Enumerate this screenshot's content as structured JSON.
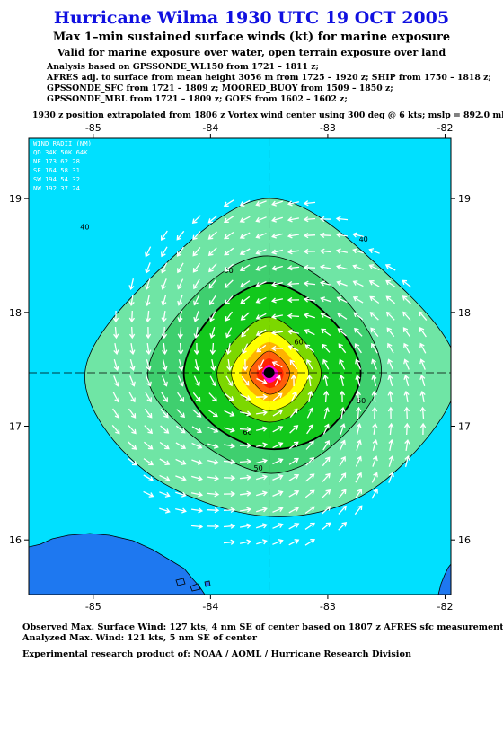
{
  "title": "Hurricane Wilma 1930 UTC 19 OCT 2005",
  "subtitle": "Max 1–min sustained surface winds (kt) for marine exposure",
  "subtitle2": "Valid for marine exposure over water, open terrain exposure over land",
  "analysis_lines": [
    "Analysis based on  GPSSONDE_WL150 from 1721 – 1811 z;",
    "AFRES adj. to surface from mean height 3056 m from 1725 – 1920 z;  SHIP from 1750 – 1818 z;",
    "GPSSONDE_SFC from 1721 – 1809 z;  MOORED_BUOY from 1509 – 1850 z;",
    "GPSSONDE_MBL from 1721 – 1809 z;  GOES from 1602 – 1602 z;"
  ],
  "position_line": "1930 z position extrapolated from 1806 z Vortex wind center using 300 deg @ 6 kts; mslp = 892.0 mb",
  "map": {
    "lon_ticks": [
      "-85",
      "-84",
      "-83",
      "-82"
    ],
    "lat_ticks": [
      "19",
      "18",
      "17",
      "16"
    ],
    "center": {
      "lon": -83.5,
      "lat": 17.47
    },
    "lon_range": [
      -85.55,
      -81.95
    ],
    "lat_range": [
      15.52,
      19.53
    ],
    "contour_labels": [
      "40",
      "40",
      "40",
      "40",
      "50",
      "50",
      "50",
      "60",
      "60"
    ],
    "legend": {
      "title": "WIND RADII (NM)",
      "header": "QD  34K  50K  64K",
      "rows": [
        "NE  173   62   28",
        "SE  164   58   31",
        "SW  194   54   32",
        "NW  192   37   24"
      ]
    },
    "colors": {
      "ocean": "#00e0ff",
      "land": "#1e78f0",
      "kt40": "#6fe5a5",
      "kt50": "#3fcf6f",
      "kt60": "#12c81c",
      "kt70": "#7cd800",
      "kt80": "#ffff00",
      "kt90": "#ffb300",
      "kt100": "#ff5e0a",
      "kt110": "#ff2200",
      "kt120": "#ff00cc",
      "arrow": "#ffffff"
    }
  },
  "footer": {
    "observed": "Observed Max. Surface Wind: 127 kts, 4 nm SE of center based on 1807 z AFRES sfc measurement",
    "analyzed": "Analyzed Max. Wind: 121 kts, 5 nm SE of center",
    "product": "Experimental research product of:  NOAA / AOML / Hurricane Research Division"
  }
}
